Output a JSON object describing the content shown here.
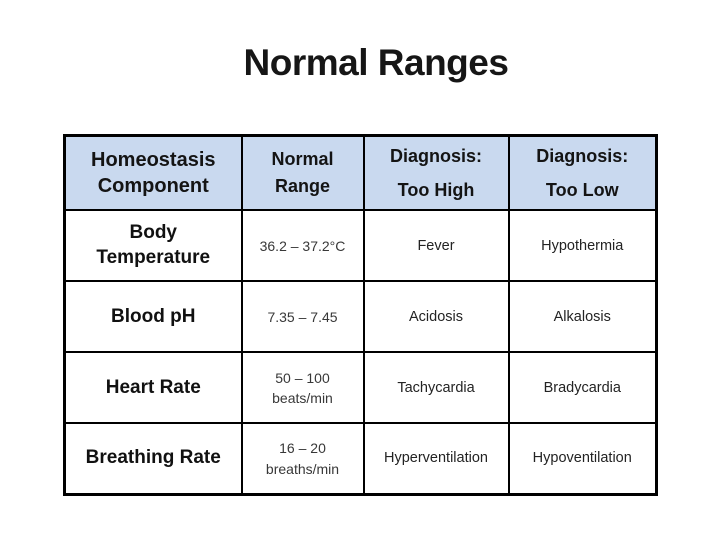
{
  "title": "Normal Ranges",
  "colors": {
    "header_bg": "#c9d9ef",
    "border": "#000000",
    "title_text": "#161616"
  },
  "table": {
    "headers": [
      "Homeostasis\nComponent",
      "Normal\nRange",
      "Diagnosis:\nToo High",
      "Diagnosis:\nToo Low"
    ],
    "rows": [
      {
        "component": "Body\nTemperature",
        "range": "36.2 – 37.2°C",
        "too_high": "Fever",
        "too_low": "Hypothermia"
      },
      {
        "component": "Blood pH",
        "range": "7.35 – 7.45",
        "too_high": "Acidosis",
        "too_low": "Alkalosis"
      },
      {
        "component": "Heart Rate",
        "range": "50 – 100\nbeats/min",
        "too_high": "Tachycardia",
        "too_low": "Bradycardia"
      },
      {
        "component": "Breathing Rate",
        "range": "16 – 20\nbreaths/min",
        "too_high": "Hyperventilation",
        "too_low": "Hypoventilation"
      }
    ]
  }
}
